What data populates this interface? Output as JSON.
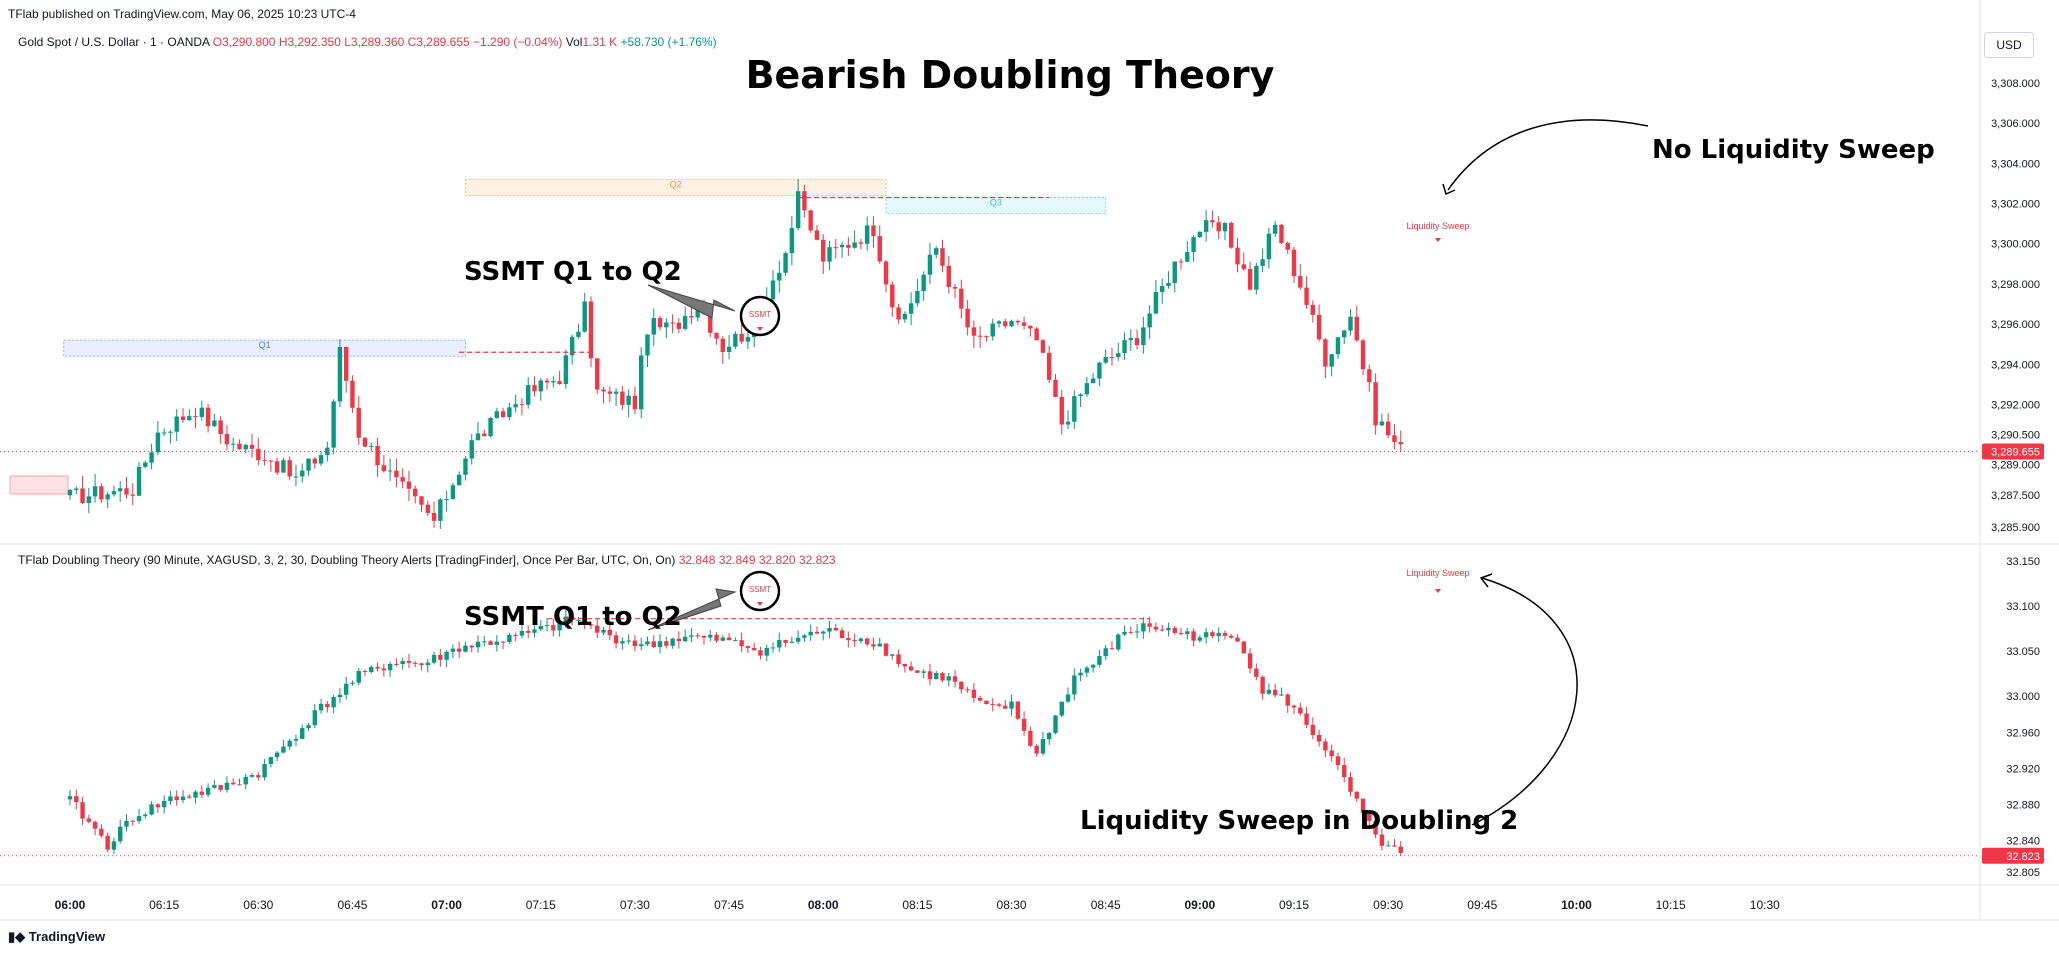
{
  "header": {
    "publisher_line": "TFlab published on TradingView.com, May 06, 2025 10:23 UTC-4"
  },
  "symbol": {
    "name": "Gold Spot / U.S. Dollar · 1 · OANDA",
    "open": "O3,290.800",
    "high": "H3,292.350",
    "low": "L3,289.360",
    "close": "C3,289.655",
    "change": "−1.290 (−0.04%)",
    "vol_label": "Vol",
    "vol": "1.31 K",
    "vol_change": "+58.730 (+1.76%)"
  },
  "currency_button": "USD",
  "indicator": {
    "name": "TFlab Doubling Theory (90 Minute, XAGUSD, 3, 2, 30, Doubling Theory Alerts [TradingFinder], Once Per Bar, UTC, On, On)",
    "values": [
      "32.848",
      "32.849",
      "32.820",
      "32.823"
    ]
  },
  "footer": {
    "logo_text": "TradingView"
  },
  "colors": {
    "up": "#089981",
    "down": "#f23645",
    "q1": "#2962ff",
    "q2": "#f57c00",
    "q3": "#00bcd4",
    "text": "#131722"
  },
  "chart_data": [
    {
      "type": "candlestick",
      "title": "Bearish Doubling Theory",
      "ylim": [
        3284.8,
        3309.8
      ],
      "y_ticks": [
        "3,308.000",
        "3,306.000",
        "3,304.000",
        "3,302.000",
        "3,300.000",
        "3,298.000",
        "3,296.000",
        "3,294.000",
        "3,292.000",
        "3,290.500",
        "3,289.000",
        "3,287.500",
        "3,285.900"
      ],
      "y_tick_values": [
        3308,
        3306,
        3304,
        3302,
        3300,
        3298,
        3296,
        3294,
        3292,
        3290.5,
        3289,
        3287.5,
        3285.9
      ],
      "last_price": "3,289.655",
      "last_price_value": 3289.655,
      "anchors": [
        [
          0,
          3287.4
        ],
        [
          10,
          3287.8
        ],
        [
          14,
          3290.6
        ],
        [
          20,
          3291.8
        ],
        [
          26,
          3290.0
        ],
        [
          31,
          3289.5
        ],
        [
          36,
          3288.3
        ],
        [
          41,
          3289.9
        ],
        [
          43,
          3294.6
        ],
        [
          46,
          3290.6
        ],
        [
          52,
          3288.1
        ],
        [
          58,
          3286.2
        ],
        [
          64,
          3290.1
        ],
        [
          72,
          3292.4
        ],
        [
          78,
          3293.4
        ],
        [
          82,
          3296.7
        ],
        [
          84,
          3292.6
        ],
        [
          90,
          3292.1
        ],
        [
          92,
          3295.9
        ],
        [
          96,
          3295.8
        ],
        [
          100,
          3297.1
        ],
        [
          104,
          3294.9
        ],
        [
          108,
          3295.7
        ],
        [
          114,
          3299.6
        ],
        [
          116,
          3302.2
        ],
        [
          120,
          3299.3
        ],
        [
          128,
          3300.8
        ],
        [
          132,
          3295.8
        ],
        [
          138,
          3299.8
        ],
        [
          144,
          3295.1
        ],
        [
          150,
          3296.2
        ],
        [
          154,
          3295.2
        ],
        [
          158,
          3291.1
        ],
        [
          164,
          3293.9
        ],
        [
          170,
          3295.4
        ],
        [
          176,
          3299.0
        ],
        [
          180,
          3300.8
        ],
        [
          184,
          3300.6
        ],
        [
          188,
          3298.0
        ],
        [
          192,
          3300.9
        ],
        [
          196,
          3298.0
        ],
        [
          200,
          3294.3
        ],
        [
          204,
          3296.5
        ],
        [
          208,
          3291.4
        ],
        [
          212,
          3289.7
        ]
      ],
      "zones": [
        {
          "label": "Q1",
          "t_start": -1,
          "t_end": 63,
          "top": 3295.2,
          "bottom": 3294.4
        },
        {
          "label": "Q2",
          "t_start": 63,
          "t_end": 130,
          "top": 3303.2,
          "bottom": 3302.4
        },
        {
          "label": "Q3",
          "t_start": 130,
          "t_end": 165,
          "top": 3302.3,
          "bottom": 3301.5
        }
      ],
      "annotations": [
        "SSMT Q1 to Q2",
        "No Liquidity Sweep",
        "Liquidity Sweep",
        "SSMT"
      ]
    },
    {
      "type": "candlestick",
      "title": "XAGUSD",
      "ylim": [
        32.8,
        33.156
      ],
      "y_ticks": [
        "33.150",
        "33.100",
        "33.050",
        "33.000",
        "32.960",
        "32.920",
        "32.880",
        "32.840",
        "32.805"
      ],
      "y_tick_values": [
        33.15,
        33.1,
        33.05,
        33.0,
        32.96,
        32.92,
        32.88,
        32.84,
        32.805
      ],
      "last_price": "32.823",
      "last_price_value": 32.823,
      "anchors": [
        [
          0,
          32.885
        ],
        [
          6,
          32.835
        ],
        [
          10,
          32.866
        ],
        [
          16,
          32.886
        ],
        [
          24,
          32.898
        ],
        [
          30,
          32.915
        ],
        [
          40,
          32.987
        ],
        [
          46,
          33.022
        ],
        [
          52,
          33.039
        ],
        [
          56,
          33.035
        ],
        [
          62,
          33.054
        ],
        [
          70,
          33.064
        ],
        [
          78,
          33.079
        ],
        [
          80,
          33.086
        ],
        [
          86,
          33.066
        ],
        [
          92,
          33.056
        ],
        [
          98,
          33.066
        ],
        [
          104,
          33.062
        ],
        [
          110,
          33.051
        ],
        [
          116,
          33.064
        ],
        [
          120,
          33.073
        ],
        [
          124,
          33.066
        ],
        [
          128,
          33.061
        ],
        [
          134,
          33.028
        ],
        [
          140,
          33.019
        ],
        [
          146,
          32.986
        ],
        [
          150,
          32.989
        ],
        [
          154,
          32.935
        ],
        [
          160,
          33.021
        ],
        [
          164,
          33.041
        ],
        [
          168,
          33.071
        ],
        [
          172,
          33.078
        ],
        [
          176,
          33.071
        ],
        [
          180,
          33.066
        ],
        [
          186,
          33.066
        ],
        [
          190,
          33.007
        ],
        [
          194,
          32.994
        ],
        [
          200,
          32.943
        ],
        [
          204,
          32.894
        ],
        [
          208,
          32.843
        ],
        [
          210,
          32.833
        ],
        [
          212,
          32.823
        ]
      ],
      "annotations": [
        "SSMT Q1 to Q2",
        "Liquidity Sweep",
        "Liquidity Sweep in Doubling 2",
        "SSMT"
      ]
    }
  ],
  "x_axis": {
    "ticks": [
      "06:00",
      "06:15",
      "06:30",
      "06:45",
      "07:00",
      "07:15",
      "07:30",
      "07:45",
      "08:00",
      "08:15",
      "08:30",
      "08:45",
      "09:00",
      "09:15",
      "09:30",
      "09:45",
      "10:00",
      "10:15",
      "10:30"
    ],
    "bold": [
      "06:00",
      "07:00",
      "08:00",
      "09:00",
      "10:00"
    ]
  }
}
